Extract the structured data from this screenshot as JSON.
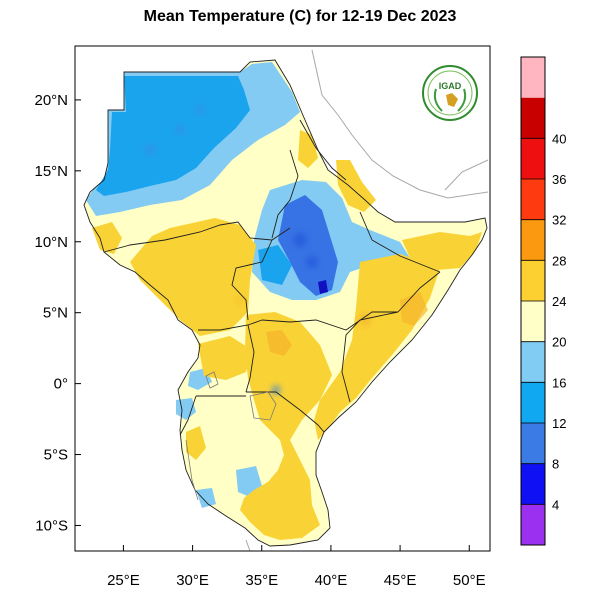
{
  "title": "Mean Temperature (C) for 12-19 Dec 2023",
  "logo_text": "IGAD",
  "map": {
    "lon_range": [
      21.5,
      51.5
    ],
    "lat_range": [
      -11.8,
      23.8
    ],
    "lon_ticks": [
      {
        "value": 25,
        "label": "25°E"
      },
      {
        "value": 30,
        "label": "30°E"
      },
      {
        "value": 35,
        "label": "35°E"
      },
      {
        "value": 40,
        "label": "40°E"
      },
      {
        "value": 45,
        "label": "45°E"
      },
      {
        "value": 50,
        "label": "50°E"
      }
    ],
    "lat_ticks": [
      {
        "value": 20,
        "label": "20°N"
      },
      {
        "value": 15,
        "label": "15°N"
      },
      {
        "value": 10,
        "label": "10°N"
      },
      {
        "value": 5,
        "label": "5°N"
      },
      {
        "value": 0,
        "label": "0°"
      },
      {
        "value": -5,
        "label": "5°S"
      },
      {
        "value": -10,
        "label": "10°S"
      }
    ]
  },
  "colorbar": {
    "colors": [
      "#9b30f0",
      "#1010f5",
      "#3a7be6",
      "#10a8f0",
      "#80ccf2",
      "#ffffc8",
      "#fcd030",
      "#fb9a10",
      "#fe3b10",
      "#ee1010",
      "#c80000",
      "#ffb6c1"
    ],
    "labels": [
      "4",
      "8",
      "12",
      "16",
      "20",
      "24",
      "28",
      "32",
      "36",
      "40"
    ]
  },
  "colors": {
    "cool_blue": "#1aa4ee",
    "light_blue": "#83cbf2",
    "pale_yellow": "#ffffc6",
    "warm_yellow": "#f9d336",
    "orange": "#f6b62d",
    "deep_blue": "#2a64e2"
  }
}
